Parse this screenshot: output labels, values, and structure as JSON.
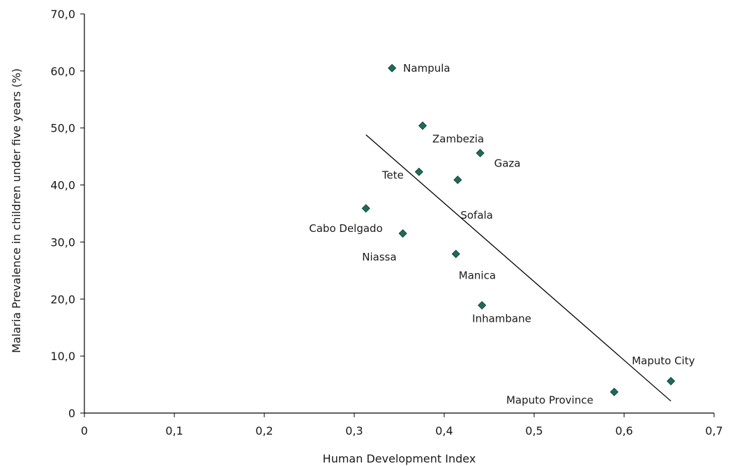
{
  "chart_data": {
    "type": "scatter",
    "title": "",
    "xlabel": "Human Development Index",
    "ylabel": "Malaria Prevalence in children under five years (%)",
    "xlim": [
      0,
      0.7
    ],
    "ylim": [
      0,
      70
    ],
    "x_ticks": [
      "0",
      "0,1",
      "0,2",
      "0,3",
      "0,4",
      "0,5",
      "0,6",
      "0,7"
    ],
    "y_ticks": [
      "0",
      "10,0",
      "20,0",
      "30,0",
      "40,0",
      "50,0",
      "60,0",
      "70,0"
    ],
    "grid": false,
    "legend": "none",
    "marker": "diamond",
    "marker_color": "#1f6b5a",
    "points": [
      {
        "label": "Nampula",
        "x": 0.342,
        "y": 60.5
      },
      {
        "label": "Zambezia",
        "x": 0.376,
        "y": 50.4
      },
      {
        "label": "Gaza",
        "x": 0.44,
        "y": 45.6
      },
      {
        "label": "Tete",
        "x": 0.372,
        "y": 42.3
      },
      {
        "label": "Sofala",
        "x": 0.415,
        "y": 40.9
      },
      {
        "label": "Cabo Delgado",
        "x": 0.313,
        "y": 35.9
      },
      {
        "label": "Niassa",
        "x": 0.354,
        "y": 31.5
      },
      {
        "label": "Manica",
        "x": 0.413,
        "y": 27.9
      },
      {
        "label": "Inhambane",
        "x": 0.442,
        "y": 18.9
      },
      {
        "label": "Maputo City",
        "x": 0.652,
        "y": 5.6
      },
      {
        "label": "Maputo Province",
        "x": 0.589,
        "y": 3.7
      }
    ],
    "trendline": {
      "x": [
        0.313,
        0.652
      ],
      "y": [
        48.8,
        2.1
      ]
    }
  }
}
